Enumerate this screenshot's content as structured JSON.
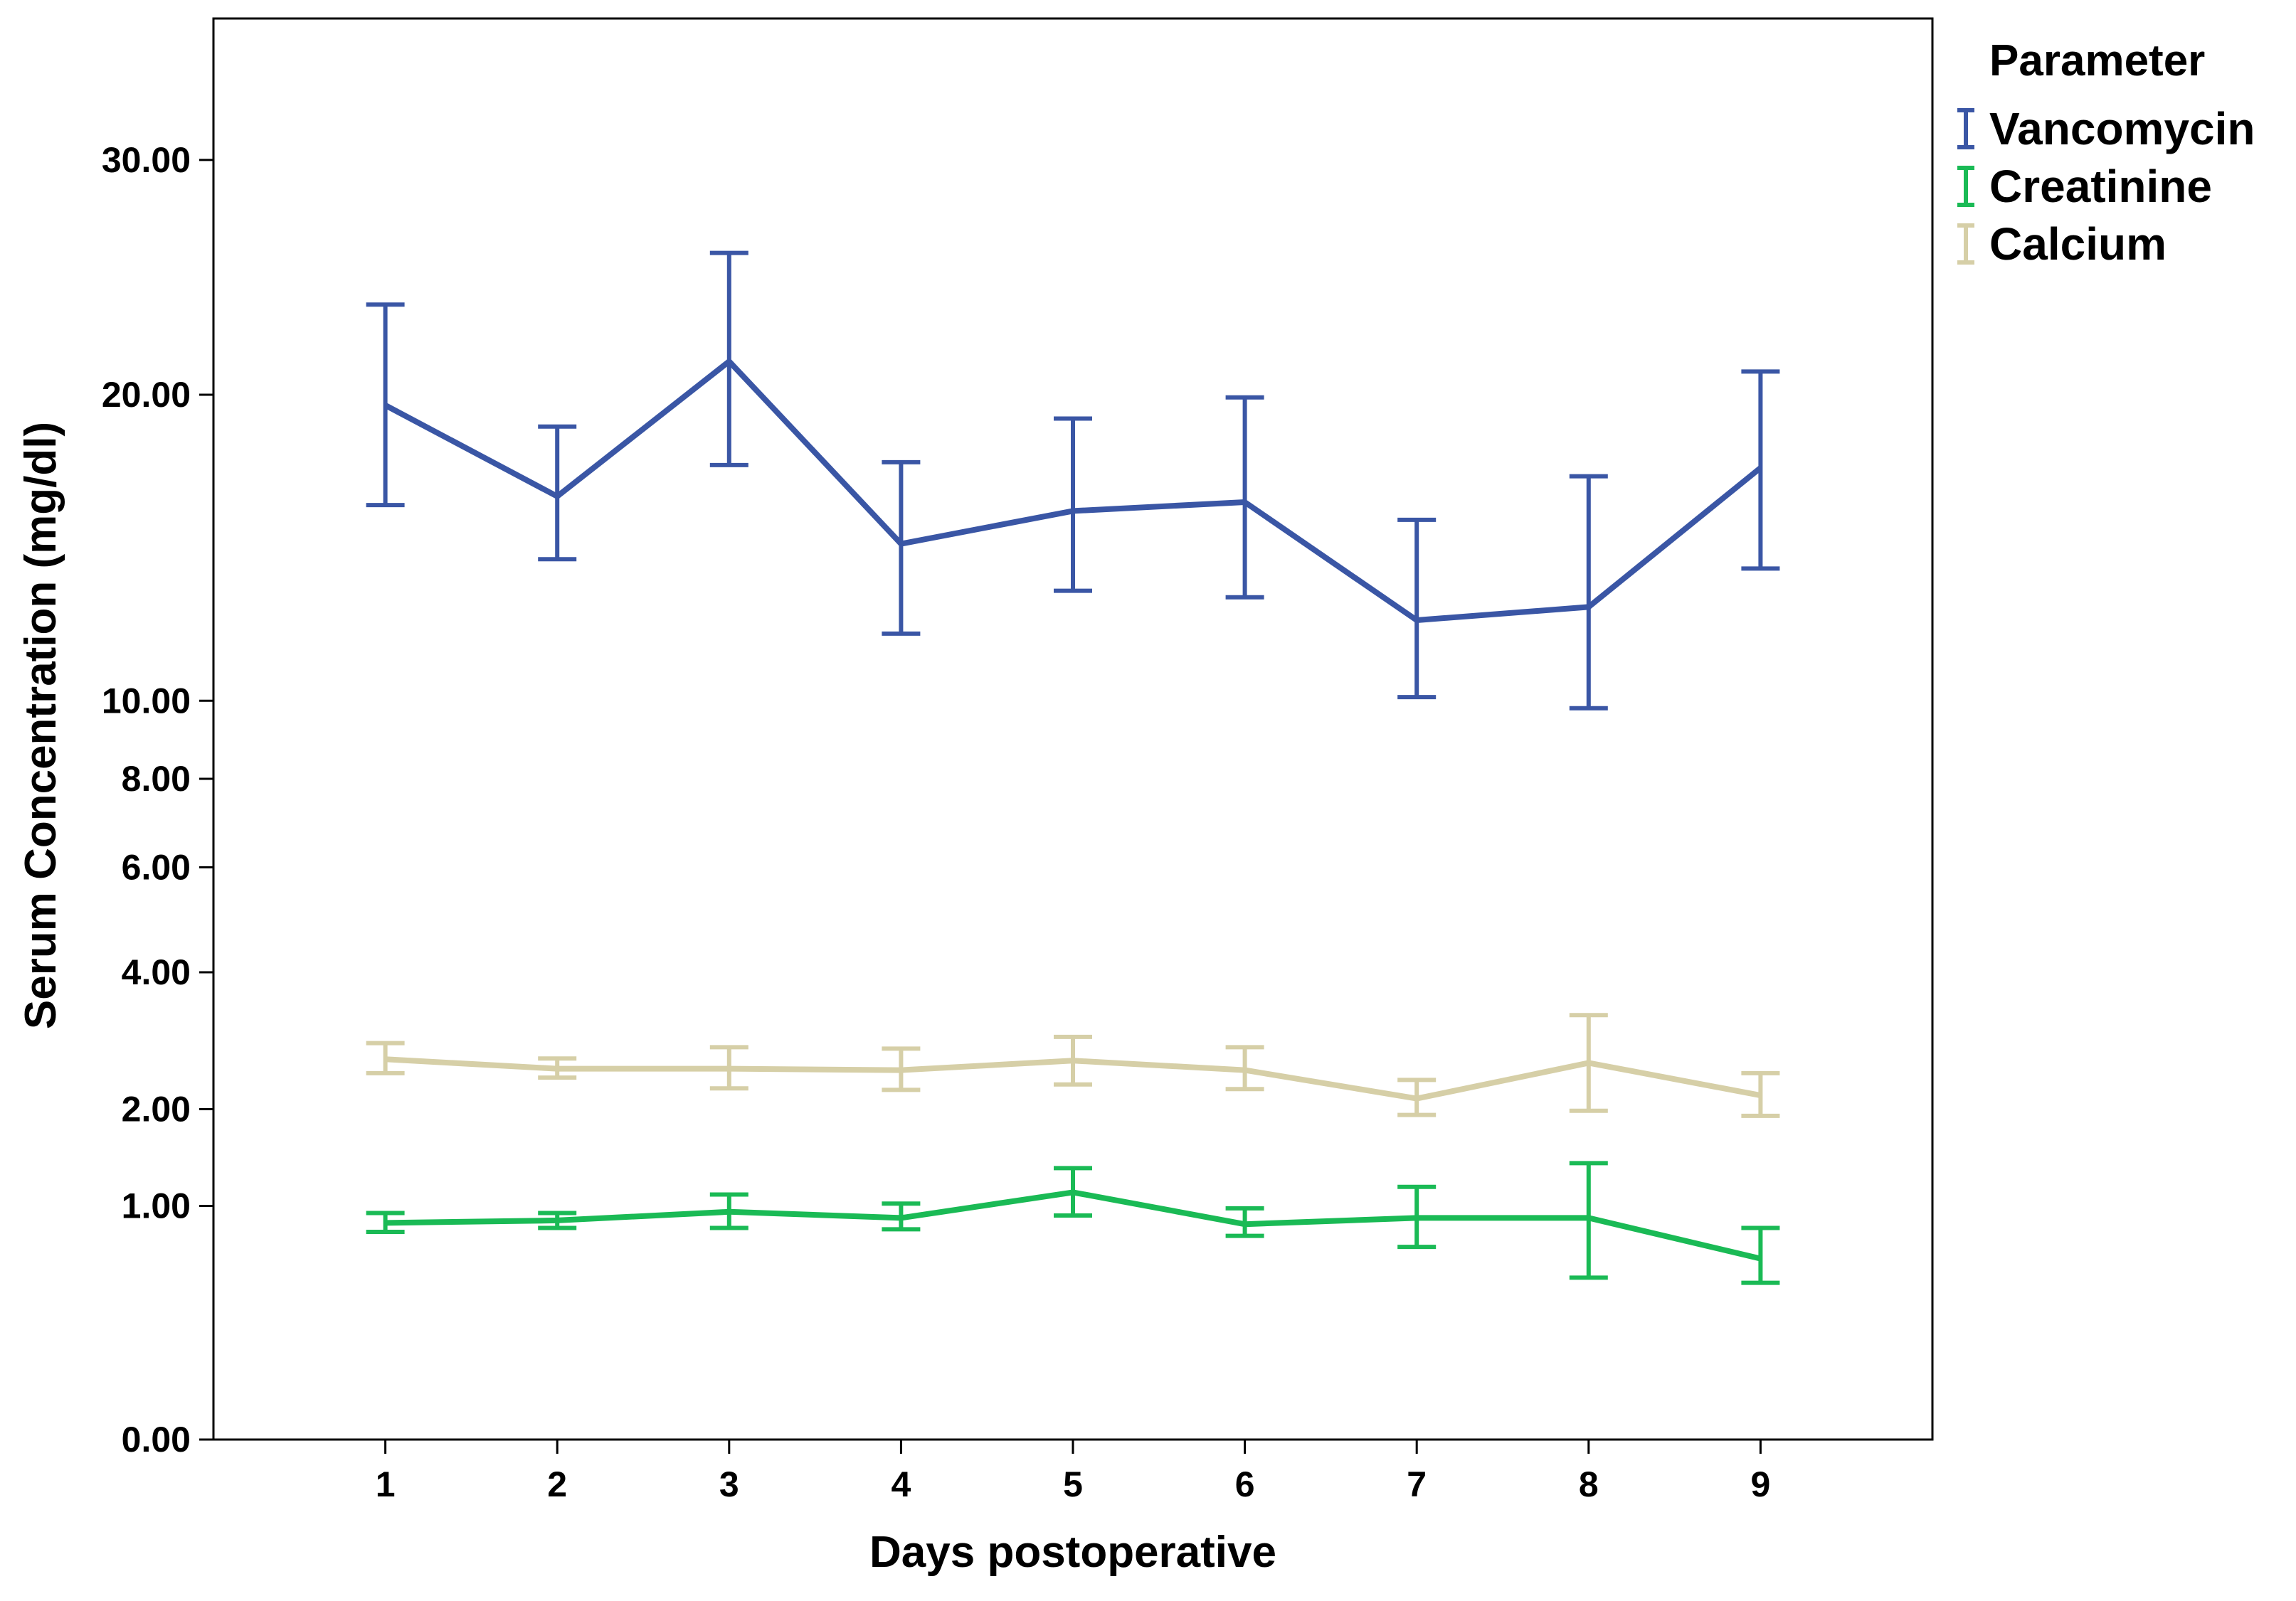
{
  "chart_data": {
    "type": "line",
    "title": "",
    "xlabel": "Days postoperative",
    "ylabel": "Serum Concentration (mg/dl)",
    "x": [
      1,
      2,
      3,
      4,
      5,
      6,
      7,
      8,
      9
    ],
    "x_tick_labels": [
      "1",
      "2",
      "3",
      "4",
      "5",
      "6",
      "7",
      "8",
      "9"
    ],
    "xlim": [
      0,
      10
    ],
    "y_scale": "square-root",
    "ylim": [
      0,
      37
    ],
    "y_ticks": [
      0,
      1,
      2,
      4,
      6,
      8,
      10,
      20,
      30
    ],
    "y_tick_labels": [
      "0.00",
      "1.00",
      "2.00",
      "4.00",
      "6.00",
      "8.00",
      "10.00",
      "20.00",
      "30.00"
    ],
    "error_bars": true,
    "grid": false,
    "legend": {
      "title": "Parameter",
      "placement": "top-right, outside plot"
    },
    "series": [
      {
        "name": "Vancomycin",
        "color": "#3a56a5",
        "values": [
          19.6,
          16.3,
          21.3,
          14.7,
          15.8,
          16.1,
          12.3,
          12.7,
          17.3
        ],
        "lower": [
          16.0,
          14.2,
          17.4,
          11.9,
          13.2,
          13.0,
          10.1,
          9.8,
          13.9
        ],
        "upper": [
          23.6,
          18.8,
          25.8,
          17.5,
          19.1,
          19.9,
          15.5,
          17.0,
          20.9
        ]
      },
      {
        "name": "Creatinine",
        "color": "#1aba55",
        "values": [
          0.86,
          0.88,
          0.95,
          0.9,
          1.12,
          0.85,
          0.9,
          0.9,
          0.6
        ],
        "lower": [
          0.79,
          0.82,
          0.82,
          0.81,
          0.92,
          0.76,
          0.68,
          0.48,
          0.45
        ],
        "upper": [
          0.94,
          0.94,
          1.1,
          1.02,
          1.35,
          0.98,
          1.17,
          1.4,
          0.82
        ]
      },
      {
        "name": "Calcium",
        "color": "#d6cfa7",
        "values": [
          2.65,
          2.52,
          2.52,
          2.5,
          2.63,
          2.5,
          2.13,
          2.6,
          2.17
        ],
        "lower": [
          2.46,
          2.4,
          2.26,
          2.24,
          2.31,
          2.25,
          1.93,
          1.98,
          1.92
        ],
        "upper": [
          2.88,
          2.66,
          2.82,
          2.8,
          2.97,
          2.82,
          2.37,
          3.3,
          2.46
        ]
      }
    ]
  }
}
